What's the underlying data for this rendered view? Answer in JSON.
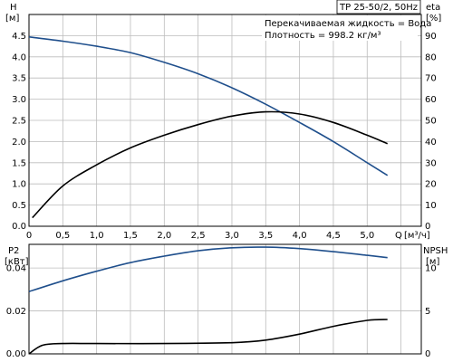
{
  "chart_data": [
    {
      "type": "line",
      "title": "TP 25-50/2, 50Hz",
      "annotations": [
        "Перекачиваемая жидкость = Вода",
        "Плотность = 998.2 кг/м³"
      ],
      "xlabel": "Q [м³/ч]",
      "x_unit_label": "[м³/ч]",
      "x_axis_label": "Q",
      "xlim": [
        0,
        5.8
      ],
      "x_ticks": [
        0,
        0.5,
        1.0,
        1.5,
        2.0,
        2.5,
        3.0,
        3.5,
        4.0,
        4.5,
        5.0
      ],
      "x_tick_labels": [
        "0",
        "0,5",
        "1,0",
        "1,5",
        "2,0",
        "2,5",
        "3,0",
        "3,5",
        "4,0",
        "4,5",
        "5,0"
      ],
      "ylabel_left": "H",
      "ylabel_left_unit": "[м]",
      "ylim_left": [
        0,
        5.0
      ],
      "y_ticks_left": [
        "0.0",
        "0.5",
        "1.0",
        "1.5",
        "2.0",
        "2.5",
        "3.0",
        "3.5",
        "4.0",
        "4.5"
      ],
      "ylabel_right": "eta",
      "ylabel_right_unit": "[%]",
      "ylim_right": [
        0,
        100
      ],
      "y_ticks_right": [
        "0",
        "10",
        "20",
        "30",
        "40",
        "50",
        "60",
        "70",
        "80",
        "90"
      ],
      "grid": true,
      "series": [
        {
          "name": "H",
          "axis": "left",
          "color": "#1f4f8c",
          "x": [
            0,
            0.5,
            1.0,
            1.5,
            2.0,
            2.5,
            3.0,
            3.5,
            4.0,
            4.5,
            5.0,
            5.3
          ],
          "y": [
            4.47,
            4.37,
            4.25,
            4.1,
            3.87,
            3.6,
            3.27,
            2.88,
            2.45,
            2.0,
            1.5,
            1.2
          ]
        },
        {
          "name": "eta",
          "axis": "right",
          "color": "#000000",
          "x": [
            0.05,
            0.5,
            1.0,
            1.5,
            2.0,
            2.5,
            3.0,
            3.5,
            4.0,
            4.5,
            5.0,
            5.3
          ],
          "y": [
            4,
            19,
            29,
            37,
            43,
            48,
            52,
            54,
            53,
            49,
            43,
            39
          ]
        }
      ]
    },
    {
      "type": "line",
      "xlim": [
        0,
        5.8
      ],
      "ylabel_left": "P2",
      "ylabel_left_unit": "[кВт]",
      "ylim_left": [
        0,
        0.051
      ],
      "y_ticks_left": [
        "0.00",
        "0.02",
        "0.04"
      ],
      "ylabel_right": "NPSH",
      "ylabel_right_unit": "[м]",
      "ylim_right": [
        0,
        12.75
      ],
      "y_ticks_right": [
        "0",
        "5",
        "10"
      ],
      "grid": true,
      "series": [
        {
          "name": "P2",
          "axis": "left",
          "color": "#1f4f8c",
          "x": [
            0,
            0.5,
            1.0,
            1.5,
            2.0,
            2.5,
            3.0,
            3.5,
            4.0,
            4.5,
            5.0,
            5.3
          ],
          "y": [
            0.029,
            0.034,
            0.0385,
            0.0425,
            0.0455,
            0.048,
            0.0494,
            0.0497,
            0.049,
            0.0476,
            0.0459,
            0.0448
          ]
        },
        {
          "name": "NPSH",
          "axis": "right",
          "color": "#000000",
          "x": [
            0,
            0.2,
            0.5,
            1.0,
            2.0,
            3.0,
            3.5,
            4.0,
            4.5,
            5.0,
            5.3
          ],
          "y": [
            0,
            1.0,
            1.2,
            1.2,
            1.2,
            1.3,
            1.6,
            2.3,
            3.2,
            3.9,
            4.0
          ]
        }
      ]
    }
  ]
}
